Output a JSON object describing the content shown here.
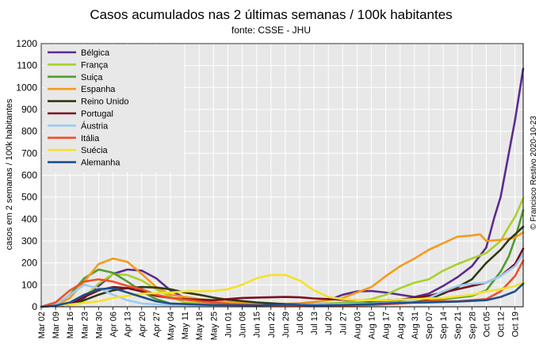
{
  "chart_data": {
    "type": "line",
    "title": "Casos acumulados nas 2 últimas semanas / 100k habitantes",
    "subtitle": "fonte: CSSE - JHU",
    "ylabel": "casos em 2 semanas / 100k habitantes",
    "credit": "© Francisco Restivo 2020-10-23",
    "ylim": [
      0,
      1200
    ],
    "yticks": [
      0,
      100,
      200,
      300,
      400,
      500,
      600,
      700,
      800,
      900,
      1000,
      1100,
      1200
    ],
    "xlim": [
      "2020-03-02",
      "2020-10-23"
    ],
    "xticks": [
      "Mar 02",
      "Mar 09",
      "Mar 16",
      "Mar 23",
      "Mar 30",
      "Apr 06",
      "Apr 13",
      "Apr 20",
      "Apr 27",
      "May 04",
      "May 11",
      "May 18",
      "May 25",
      "Jun 01",
      "Jun 08",
      "Jun 15",
      "Jun 22",
      "Jun 29",
      "Jul 06",
      "Jul 13",
      "Jul 20",
      "Jul 27",
      "Aug 03",
      "Aug 10",
      "Aug 17",
      "Aug 24",
      "Aug 31",
      "Sep 07",
      "Sep 14",
      "Sep 21",
      "Sep 28",
      "Oct 05",
      "Oct 12",
      "Oct 19"
    ],
    "grid": true,
    "legend_position": "top-left",
    "series": [
      {
        "name": "Bélgica",
        "color": "#5b2c8f",
        "points": [
          [
            "2020-03-02",
            0
          ],
          [
            "2020-03-16",
            10
          ],
          [
            "2020-03-23",
            40
          ],
          [
            "2020-03-30",
            95
          ],
          [
            "2020-04-06",
            150
          ],
          [
            "2020-04-13",
            170
          ],
          [
            "2020-04-20",
            165
          ],
          [
            "2020-04-27",
            130
          ],
          [
            "2020-05-04",
            75
          ],
          [
            "2020-05-11",
            40
          ],
          [
            "2020-05-18",
            25
          ],
          [
            "2020-06-01",
            15
          ],
          [
            "2020-06-15",
            12
          ],
          [
            "2020-06-29",
            12
          ],
          [
            "2020-07-06",
            15
          ],
          [
            "2020-07-20",
            30
          ],
          [
            "2020-07-27",
            55
          ],
          [
            "2020-08-03",
            70
          ],
          [
            "2020-08-10",
            72
          ],
          [
            "2020-08-17",
            65
          ],
          [
            "2020-08-31",
            45
          ],
          [
            "2020-09-07",
            60
          ],
          [
            "2020-09-14",
            95
          ],
          [
            "2020-09-21",
            135
          ],
          [
            "2020-09-28",
            185
          ],
          [
            "2020-10-05",
            270
          ],
          [
            "2020-10-09",
            410
          ],
          [
            "2020-10-12",
            500
          ],
          [
            "2020-10-16",
            700
          ],
          [
            "2020-10-19",
            850
          ],
          [
            "2020-10-23",
            1085
          ]
        ]
      },
      {
        "name": "França",
        "color": "#a8d12a",
        "points": [
          [
            "2020-03-02",
            0
          ],
          [
            "2020-03-16",
            10
          ],
          [
            "2020-03-23",
            45
          ],
          [
            "2020-03-30",
            105
          ],
          [
            "2020-04-06",
            150
          ],
          [
            "2020-04-13",
            145
          ],
          [
            "2020-04-20",
            120
          ],
          [
            "2020-04-27",
            80
          ],
          [
            "2020-05-04",
            45
          ],
          [
            "2020-05-11",
            20
          ],
          [
            "2020-05-25",
            10
          ],
          [
            "2020-06-15",
            8
          ],
          [
            "2020-07-06",
            8
          ],
          [
            "2020-07-27",
            20
          ],
          [
            "2020-08-10",
            35
          ],
          [
            "2020-08-17",
            55
          ],
          [
            "2020-08-24",
            85
          ],
          [
            "2020-08-31",
            110
          ],
          [
            "2020-09-07",
            125
          ],
          [
            "2020-09-14",
            165
          ],
          [
            "2020-09-21",
            195
          ],
          [
            "2020-09-28",
            220
          ],
          [
            "2020-10-05",
            245
          ],
          [
            "2020-10-12",
            300
          ],
          [
            "2020-10-16",
            365
          ],
          [
            "2020-10-19",
            410
          ],
          [
            "2020-10-23",
            495
          ]
        ]
      },
      {
        "name": "Suiça",
        "color": "#4f9d2d",
        "points": [
          [
            "2020-03-02",
            0
          ],
          [
            "2020-03-09",
            10
          ],
          [
            "2020-03-16",
            55
          ],
          [
            "2020-03-23",
            130
          ],
          [
            "2020-03-30",
            170
          ],
          [
            "2020-04-06",
            155
          ],
          [
            "2020-04-13",
            115
          ],
          [
            "2020-04-20",
            70
          ],
          [
            "2020-04-27",
            35
          ],
          [
            "2020-05-04",
            15
          ],
          [
            "2020-05-25",
            5
          ],
          [
            "2020-06-15",
            5
          ],
          [
            "2020-07-06",
            10
          ],
          [
            "2020-07-27",
            15
          ],
          [
            "2020-08-10",
            20
          ],
          [
            "2020-08-31",
            25
          ],
          [
            "2020-09-14",
            35
          ],
          [
            "2020-09-28",
            50
          ],
          [
            "2020-10-05",
            75
          ],
          [
            "2020-10-12",
            160
          ],
          [
            "2020-10-16",
            230
          ],
          [
            "2020-10-19",
            310
          ],
          [
            "2020-10-23",
            440
          ]
        ]
      },
      {
        "name": "Espanha",
        "color": "#f59a1b",
        "points": [
          [
            "2020-03-02",
            0
          ],
          [
            "2020-03-09",
            5
          ],
          [
            "2020-03-16",
            40
          ],
          [
            "2020-03-23",
            115
          ],
          [
            "2020-03-30",
            195
          ],
          [
            "2020-04-06",
            220
          ],
          [
            "2020-04-13",
            205
          ],
          [
            "2020-04-20",
            150
          ],
          [
            "2020-04-27",
            90
          ],
          [
            "2020-05-04",
            55
          ],
          [
            "2020-05-18",
            35
          ],
          [
            "2020-06-01",
            22
          ],
          [
            "2020-06-15",
            12
          ],
          [
            "2020-07-06",
            15
          ],
          [
            "2020-07-20",
            30
          ],
          [
            "2020-07-27",
            40
          ],
          [
            "2020-08-10",
            90
          ],
          [
            "2020-08-17",
            140
          ],
          [
            "2020-08-24",
            185
          ],
          [
            "2020-08-31",
            220
          ],
          [
            "2020-09-07",
            260
          ],
          [
            "2020-09-14",
            290
          ],
          [
            "2020-09-21",
            320
          ],
          [
            "2020-09-28",
            325
          ],
          [
            "2020-10-02",
            330
          ],
          [
            "2020-10-05",
            300
          ],
          [
            "2020-10-12",
            305
          ],
          [
            "2020-10-19",
            315
          ],
          [
            "2020-10-23",
            340
          ]
        ]
      },
      {
        "name": "Reino Unido",
        "color": "#2e3a12",
        "points": [
          [
            "2020-03-02",
            0
          ],
          [
            "2020-03-16",
            10
          ],
          [
            "2020-03-23",
            30
          ],
          [
            "2020-03-30",
            55
          ],
          [
            "2020-04-06",
            75
          ],
          [
            "2020-04-13",
            85
          ],
          [
            "2020-04-20",
            90
          ],
          [
            "2020-04-27",
            88
          ],
          [
            "2020-05-04",
            80
          ],
          [
            "2020-05-11",
            65
          ],
          [
            "2020-05-18",
            55
          ],
          [
            "2020-05-25",
            42
          ],
          [
            "2020-06-01",
            32
          ],
          [
            "2020-06-15",
            20
          ],
          [
            "2020-06-29",
            12
          ],
          [
            "2020-07-13",
            10
          ],
          [
            "2020-07-27",
            11
          ],
          [
            "2020-08-10",
            15
          ],
          [
            "2020-08-24",
            20
          ],
          [
            "2020-09-07",
            35
          ],
          [
            "2020-09-14",
            60
          ],
          [
            "2020-09-21",
            90
          ],
          [
            "2020-09-28",
            125
          ],
          [
            "2020-10-05",
            200
          ],
          [
            "2020-10-12",
            260
          ],
          [
            "2020-10-16",
            305
          ],
          [
            "2020-10-19",
            330
          ],
          [
            "2020-10-23",
            365
          ]
        ]
      },
      {
        "name": "Portugal",
        "color": "#7a0f1f",
        "points": [
          [
            "2020-03-02",
            0
          ],
          [
            "2020-03-16",
            10
          ],
          [
            "2020-03-23",
            45
          ],
          [
            "2020-03-30",
            75
          ],
          [
            "2020-04-06",
            90
          ],
          [
            "2020-04-13",
            85
          ],
          [
            "2020-04-20",
            70
          ],
          [
            "2020-04-27",
            50
          ],
          [
            "2020-05-04",
            40
          ],
          [
            "2020-05-11",
            35
          ],
          [
            "2020-05-25",
            30
          ],
          [
            "2020-06-01",
            35
          ],
          [
            "2020-06-08",
            40
          ],
          [
            "2020-06-15",
            42
          ],
          [
            "2020-06-29",
            45
          ],
          [
            "2020-07-06",
            43
          ],
          [
            "2020-07-13",
            38
          ],
          [
            "2020-07-27",
            32
          ],
          [
            "2020-08-10",
            28
          ],
          [
            "2020-08-24",
            32
          ],
          [
            "2020-09-07",
            50
          ],
          [
            "2020-09-14",
            65
          ],
          [
            "2020-09-21",
            80
          ],
          [
            "2020-09-28",
            95
          ],
          [
            "2020-10-05",
            110
          ],
          [
            "2020-10-12",
            140
          ],
          [
            "2020-10-19",
            195
          ],
          [
            "2020-10-23",
            265
          ]
        ]
      },
      {
        "name": "Áustria",
        "color": "#9ccbf0",
        "points": [
          [
            "2020-03-02",
            0
          ],
          [
            "2020-03-09",
            10
          ],
          [
            "2020-03-16",
            55
          ],
          [
            "2020-03-23",
            100
          ],
          [
            "2020-03-30",
            85
          ],
          [
            "2020-04-06",
            55
          ],
          [
            "2020-04-13",
            30
          ],
          [
            "2020-04-20",
            15
          ],
          [
            "2020-05-04",
            8
          ],
          [
            "2020-06-01",
            5
          ],
          [
            "2020-06-29",
            8
          ],
          [
            "2020-07-20",
            12
          ],
          [
            "2020-08-10",
            15
          ],
          [
            "2020-08-24",
            20
          ],
          [
            "2020-09-07",
            40
          ],
          [
            "2020-09-14",
            70
          ],
          [
            "2020-09-21",
            95
          ],
          [
            "2020-09-28",
            105
          ],
          [
            "2020-10-05",
            110
          ],
          [
            "2020-10-12",
            140
          ],
          [
            "2020-10-19",
            185
          ],
          [
            "2020-10-23",
            240
          ]
        ]
      },
      {
        "name": "Itália",
        "color": "#f0502a",
        "points": [
          [
            "2020-03-02",
            0
          ],
          [
            "2020-03-09",
            20
          ],
          [
            "2020-03-16",
            75
          ],
          [
            "2020-03-23",
            115
          ],
          [
            "2020-03-30",
            125
          ],
          [
            "2020-04-06",
            115
          ],
          [
            "2020-04-13",
            95
          ],
          [
            "2020-04-20",
            80
          ],
          [
            "2020-04-27",
            55
          ],
          [
            "2020-05-04",
            40
          ],
          [
            "2020-05-18",
            25
          ],
          [
            "2020-06-01",
            12
          ],
          [
            "2020-06-29",
            5
          ],
          [
            "2020-07-20",
            5
          ],
          [
            "2020-08-10",
            8
          ],
          [
            "2020-08-24",
            15
          ],
          [
            "2020-09-07",
            25
          ],
          [
            "2020-09-21",
            25
          ],
          [
            "2020-10-05",
            35
          ],
          [
            "2020-10-12",
            70
          ],
          [
            "2020-10-19",
            140
          ],
          [
            "2020-10-23",
            210
          ]
        ]
      },
      {
        "name": "Suécia",
        "color": "#f5e12a",
        "points": [
          [
            "2020-03-02",
            0
          ],
          [
            "2020-03-16",
            10
          ],
          [
            "2020-03-30",
            25
          ],
          [
            "2020-04-06",
            40
          ],
          [
            "2020-04-13",
            50
          ],
          [
            "2020-04-20",
            60
          ],
          [
            "2020-04-27",
            62
          ],
          [
            "2020-05-04",
            65
          ],
          [
            "2020-05-11",
            70
          ],
          [
            "2020-05-25",
            72
          ],
          [
            "2020-06-01",
            80
          ],
          [
            "2020-06-08",
            100
          ],
          [
            "2020-06-15",
            130
          ],
          [
            "2020-06-22",
            145
          ],
          [
            "2020-06-29",
            145
          ],
          [
            "2020-07-06",
            120
          ],
          [
            "2020-07-13",
            75
          ],
          [
            "2020-07-20",
            45
          ],
          [
            "2020-07-27",
            35
          ],
          [
            "2020-08-03",
            30
          ],
          [
            "2020-08-17",
            30
          ],
          [
            "2020-08-31",
            35
          ],
          [
            "2020-09-14",
            40
          ],
          [
            "2020-09-28",
            55
          ],
          [
            "2020-10-05",
            70
          ],
          [
            "2020-10-12",
            80
          ],
          [
            "2020-10-19",
            95
          ],
          [
            "2020-10-23",
            110
          ]
        ]
      },
      {
        "name": "Alemanha",
        "color": "#1f4e8c",
        "points": [
          [
            "2020-03-02",
            0
          ],
          [
            "2020-03-09",
            5
          ],
          [
            "2020-03-16",
            20
          ],
          [
            "2020-03-23",
            55
          ],
          [
            "2020-03-30",
            80
          ],
          [
            "2020-04-06",
            85
          ],
          [
            "2020-04-13",
            65
          ],
          [
            "2020-04-20",
            45
          ],
          [
            "2020-04-27",
            25
          ],
          [
            "2020-05-04",
            15
          ],
          [
            "2020-05-25",
            8
          ],
          [
            "2020-06-15",
            6
          ],
          [
            "2020-06-29",
            10
          ],
          [
            "2020-07-13",
            6
          ],
          [
            "2020-07-27",
            8
          ],
          [
            "2020-08-10",
            12
          ],
          [
            "2020-08-24",
            18
          ],
          [
            "2020-09-07",
            20
          ],
          [
            "2020-09-21",
            24
          ],
          [
            "2020-10-05",
            30
          ],
          [
            "2020-10-12",
            45
          ],
          [
            "2020-10-19",
            70
          ],
          [
            "2020-10-23",
            105
          ]
        ]
      }
    ]
  }
}
